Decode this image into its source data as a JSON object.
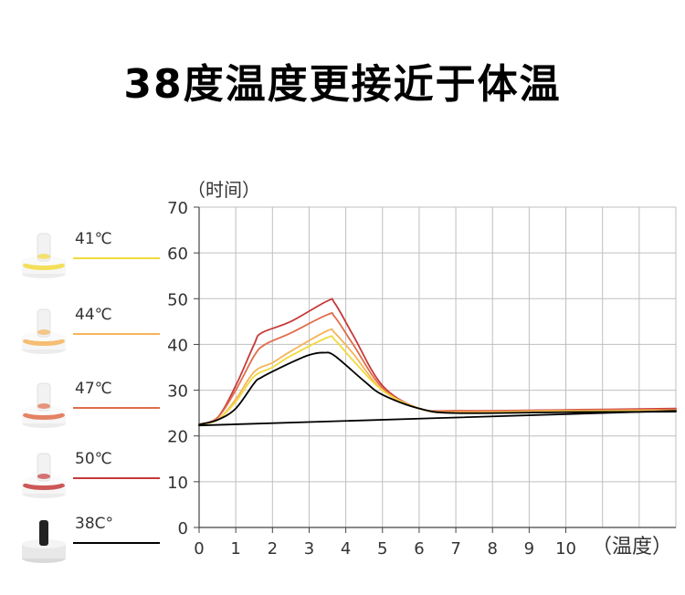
{
  "title": "38度温度更接近于体温",
  "legend": [
    {
      "label": "41℃",
      "color": "#f2da3c"
    },
    {
      "label": "44℃",
      "color": "#f5b45a"
    },
    {
      "label": "47℃",
      "color": "#e06d4a"
    },
    {
      "label": "50℃",
      "color": "#c63a3a"
    },
    {
      "label": "38C°",
      "color": "#000000"
    }
  ],
  "chart_data": {
    "type": "line",
    "ylabel": "（时间）",
    "xlabel": "（温度）",
    "xlim": [
      0,
      13
    ],
    "ylim": [
      0,
      70
    ],
    "xticks": [
      "0",
      "1",
      "2",
      "3",
      "4",
      "5",
      "6",
      "7",
      "8",
      "9",
      "10"
    ],
    "yticks": [
      "0",
      "10",
      "20",
      "30",
      "40",
      "50",
      "60",
      "70"
    ],
    "grid": true,
    "series": [
      {
        "name": "50℃",
        "color": "#c63a3a",
        "x": [
          0,
          0.5,
          1.0,
          1.5,
          1.7,
          2.5,
          3.5,
          3.7,
          4.2,
          5.0,
          6.0,
          7.0,
          10.0,
          13.0
        ],
        "y": [
          22.5,
          24,
          31,
          40,
          42.5,
          45,
          49.5,
          49,
          42,
          31,
          26,
          25.5,
          25.7,
          26
        ]
      },
      {
        "name": "47℃",
        "color": "#e06d4a",
        "x": [
          0,
          0.5,
          1.0,
          1.5,
          1.8,
          2.5,
          3.5,
          3.7,
          4.2,
          5.0,
          6.0,
          7.0,
          10.0,
          13.0
        ],
        "y": [
          22.5,
          24,
          30,
          37.5,
          40,
          42.5,
          46.5,
          46,
          40,
          30.5,
          26,
          25.5,
          25.6,
          25.8
        ]
      },
      {
        "name": "44℃",
        "color": "#f5b45a",
        "x": [
          0,
          0.5,
          1.0,
          1.5,
          2.0,
          2.5,
          3.5,
          3.7,
          4.2,
          5.0,
          6.0,
          7.0,
          10.0,
          13.0
        ],
        "y": [
          22.5,
          23.5,
          28,
          34,
          36,
          38.5,
          43,
          42.5,
          38,
          30,
          26,
          25.2,
          25.5,
          25.6
        ]
      },
      {
        "name": "41℃",
        "color": "#f2da3c",
        "x": [
          0,
          0.5,
          1.0,
          1.5,
          2.0,
          2.5,
          3.5,
          3.7,
          4.2,
          5.0,
          6.0,
          7.0,
          10.0,
          13.0
        ],
        "y": [
          22.5,
          23.5,
          27.5,
          33,
          35,
          37.5,
          41.5,
          41,
          36.5,
          30,
          26,
          25,
          25.3,
          25.4
        ]
      },
      {
        "name": "38C°",
        "color": "#000000",
        "x": [
          0,
          0.5,
          1.0,
          1.5,
          1.7,
          2.5,
          3.0,
          3.4,
          3.7,
          4.5,
          5.0,
          6.0,
          7.0,
          10.0,
          13.0
        ],
        "y": [
          22.5,
          23.5,
          26,
          31.5,
          32.8,
          36,
          37.7,
          38.2,
          37.5,
          32,
          29,
          26,
          25,
          25.2,
          25.3
        ]
      },
      {
        "name": "baseline",
        "color": "#000000",
        "x": [
          0,
          13
        ],
        "y": [
          22.3,
          25.5
        ]
      }
    ]
  }
}
